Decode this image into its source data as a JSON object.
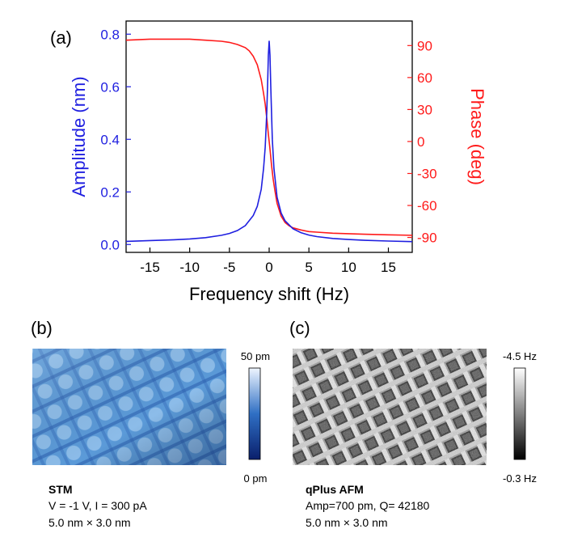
{
  "chart_data": [
    {
      "panel": "(a)",
      "type": "line",
      "xlabel": "Frequency shift (Hz)",
      "xlim": [
        -18,
        18
      ],
      "xticks": [
        -15,
        -10,
        -5,
        0,
        5,
        10,
        15
      ],
      "y_left": {
        "label": "Amplitude (nm)",
        "lim": [
          -0.03,
          0.85
        ],
        "ticks": [
          0.0,
          0.2,
          0.4,
          0.6,
          0.8
        ],
        "color": "#1f1fe0"
      },
      "y_right": {
        "label": "Phase (deg)",
        "lim": [
          -104,
          113
        ],
        "ticks": [
          -90,
          -60,
          -30,
          0,
          30,
          60,
          90
        ],
        "color": "#ff1a1a"
      },
      "series": [
        {
          "name": "Amplitude",
          "axis": "left",
          "color": "#1f1fe0",
          "x": [
            -18,
            -15,
            -12,
            -10,
            -8,
            -6,
            -5,
            -4,
            -3,
            -2,
            -1.5,
            -1,
            -0.7,
            -0.5,
            -0.3,
            -0.2,
            -0.1,
            0,
            0.1,
            0.2,
            0.4,
            0.6,
            1,
            1.5,
            2,
            3,
            4,
            5,
            6,
            8,
            10,
            12,
            15,
            18
          ],
          "y": [
            0.012,
            0.015,
            0.018,
            0.021,
            0.026,
            0.035,
            0.042,
            0.053,
            0.072,
            0.11,
            0.145,
            0.21,
            0.29,
            0.37,
            0.5,
            0.6,
            0.72,
            0.775,
            0.72,
            0.6,
            0.4,
            0.29,
            0.18,
            0.12,
            0.09,
            0.06,
            0.045,
            0.036,
            0.03,
            0.023,
            0.019,
            0.016,
            0.013,
            0.011
          ]
        },
        {
          "name": "Phase",
          "axis": "right",
          "color": "#ff1a1a",
          "x": [
            -18,
            -15,
            -12,
            -10,
            -8,
            -6,
            -5,
            -4,
            -3,
            -2.5,
            -2,
            -1.5,
            -1,
            -0.7,
            -0.5,
            -0.3,
            -0.1,
            0,
            0.1,
            0.3,
            0.5,
            0.7,
            1,
            1.5,
            2,
            2.5,
            3,
            4,
            5,
            6,
            8,
            10,
            12,
            15,
            18
          ],
          "y": [
            95,
            96,
            96,
            96,
            95,
            94,
            93,
            91,
            88,
            85,
            80,
            72,
            58,
            45,
            35,
            22,
            7,
            0,
            -7,
            -22,
            -35,
            -45,
            -58,
            -70,
            -76,
            -79,
            -81,
            -83,
            -84.5,
            -85,
            -86,
            -86.5,
            -87,
            -87.5,
            -88
          ]
        }
      ]
    },
    {
      "panel": "(b)",
      "type": "heatmap",
      "title": "STM",
      "info": [
        "V = -1 V, I = 300 pA",
        "5.0 nm × 3.0 nm"
      ],
      "colorbar": {
        "max": "50 pm",
        "min": "0 pm",
        "colors": [
          "#0a1f6b",
          "#2f6fc4",
          "#eef5ff"
        ]
      }
    },
    {
      "panel": "(c)",
      "type": "heatmap",
      "title": "qPlus AFM",
      "info": [
        "Amp=700 pm, Q= 42180",
        "5.0 nm × 3.0 nm"
      ],
      "colorbar": {
        "max": "-4.5 Hz",
        "min": "-0.3 Hz",
        "colors": [
          "#000000",
          "#ffffff"
        ]
      }
    }
  ]
}
